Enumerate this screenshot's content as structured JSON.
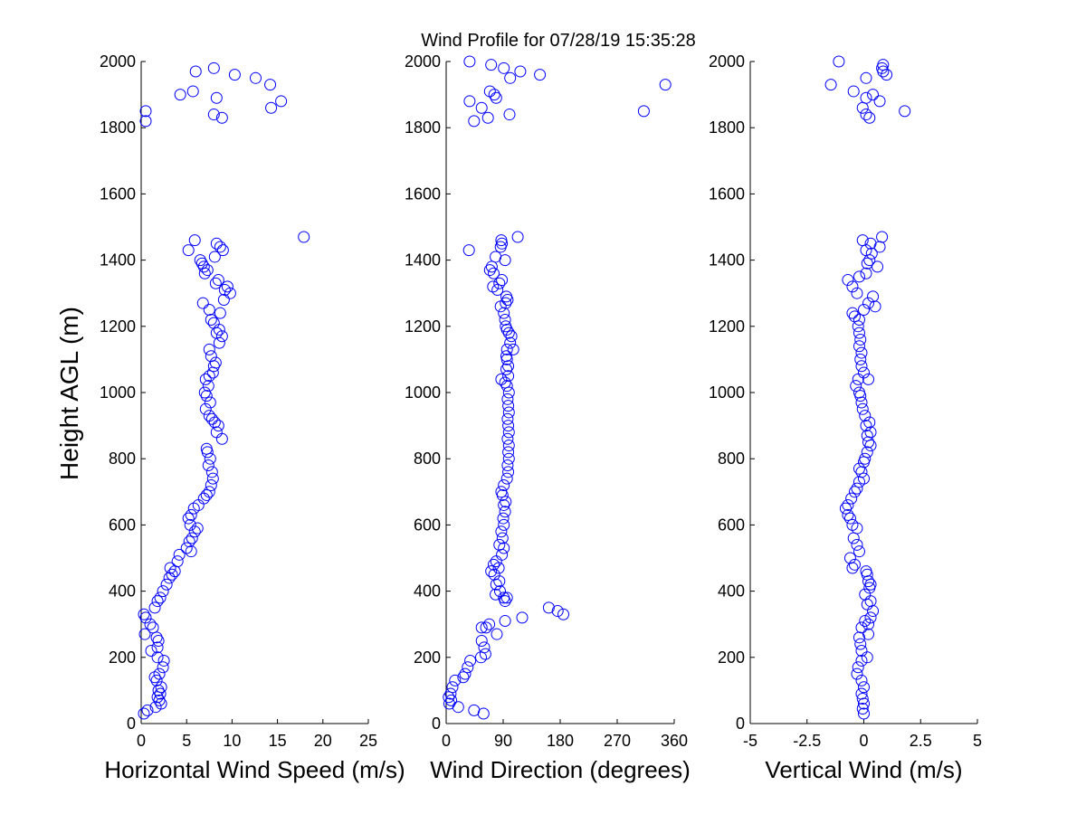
{
  "title": "Wind Profile for  07/28/19 15:35:28",
  "ylabel": "Height AGL (m)",
  "point_color": "#0000ff",
  "chart_data": [
    {
      "type": "scatter",
      "name": "speed-panel",
      "xlabel": "Horizontal Wind Speed (m/s)",
      "xlim": [
        0,
        25
      ],
      "ylim": [
        0,
        2000
      ],
      "xticks": [
        0,
        5,
        10,
        15,
        20,
        25
      ],
      "xtick_labels": [
        "0",
        "5",
        "10",
        "15",
        "20",
        "25"
      ],
      "yticks": [
        0,
        200,
        400,
        600,
        800,
        1000,
        1200,
        1400,
        1600,
        1800,
        2000
      ],
      "ytick_labels": [
        "0",
        "200",
        "400",
        "600",
        "800",
        "1000",
        "1200",
        "1400",
        "1600",
        "1800",
        "2000"
      ],
      "points": [
        [
          0.3,
          30
        ],
        [
          0.7,
          40
        ],
        [
          1.6,
          50
        ],
        [
          2.2,
          60
        ],
        [
          2.0,
          70
        ],
        [
          1.8,
          80
        ],
        [
          2.1,
          90
        ],
        [
          1.9,
          100
        ],
        [
          2.2,
          110
        ],
        [
          1.7,
          130
        ],
        [
          1.5,
          140
        ],
        [
          2.0,
          150
        ],
        [
          2.4,
          170
        ],
        [
          2.5,
          190
        ],
        [
          1.8,
          200
        ],
        [
          1.1,
          220
        ],
        [
          1.8,
          230
        ],
        [
          1.9,
          250
        ],
        [
          1.7,
          260
        ],
        [
          0.4,
          270
        ],
        [
          1.3,
          290
        ],
        [
          1.0,
          300
        ],
        [
          0.5,
          320
        ],
        [
          0.3,
          330
        ],
        [
          1.5,
          350
        ],
        [
          1.8,
          370
        ],
        [
          2.1,
          380
        ],
        [
          2.4,
          400
        ],
        [
          2.8,
          420
        ],
        [
          3.1,
          440
        ],
        [
          3.4,
          450
        ],
        [
          3.7,
          460
        ],
        [
          3.2,
          470
        ],
        [
          4.0,
          490
        ],
        [
          4.2,
          510
        ],
        [
          5.5,
          520
        ],
        [
          5.0,
          530
        ],
        [
          5.3,
          550
        ],
        [
          5.6,
          560
        ],
        [
          5.9,
          580
        ],
        [
          6.2,
          590
        ],
        [
          5.4,
          600
        ],
        [
          5.2,
          620
        ],
        [
          5.5,
          630
        ],
        [
          5.8,
          650
        ],
        [
          6.3,
          660
        ],
        [
          6.9,
          680
        ],
        [
          7.2,
          690
        ],
        [
          7.5,
          700
        ],
        [
          7.7,
          720
        ],
        [
          7.9,
          740
        ],
        [
          7.8,
          760
        ],
        [
          7.4,
          780
        ],
        [
          7.6,
          800
        ],
        [
          7.3,
          820
        ],
        [
          7.2,
          830
        ],
        [
          8.9,
          860
        ],
        [
          8.3,
          880
        ],
        [
          8.5,
          900
        ],
        [
          8.1,
          910
        ],
        [
          7.8,
          920
        ],
        [
          7.5,
          930
        ],
        [
          7.1,
          950
        ],
        [
          7.6,
          970
        ],
        [
          7.2,
          990
        ],
        [
          7.0,
          1000
        ],
        [
          7.4,
          1020
        ],
        [
          7.1,
          1040
        ],
        [
          7.5,
          1050
        ],
        [
          7.9,
          1060
        ],
        [
          8.0,
          1080
        ],
        [
          8.2,
          1090
        ],
        [
          7.7,
          1110
        ],
        [
          7.5,
          1130
        ],
        [
          8.6,
          1150
        ],
        [
          8.9,
          1170
        ],
        [
          8.3,
          1180
        ],
        [
          8.6,
          1190
        ],
        [
          8.0,
          1210
        ],
        [
          7.7,
          1220
        ],
        [
          8.7,
          1240
        ],
        [
          7.5,
          1250
        ],
        [
          6.8,
          1270
        ],
        [
          9.1,
          1280
        ],
        [
          9.8,
          1300
        ],
        [
          9.2,
          1310
        ],
        [
          9.5,
          1320
        ],
        [
          8.2,
          1330
        ],
        [
          8.5,
          1340
        ],
        [
          7.0,
          1360
        ],
        [
          7.3,
          1370
        ],
        [
          6.9,
          1380
        ],
        [
          6.7,
          1390
        ],
        [
          6.5,
          1400
        ],
        [
          8.1,
          1410
        ],
        [
          9.0,
          1430
        ],
        [
          5.2,
          1430
        ],
        [
          8.7,
          1440
        ],
        [
          8.3,
          1450
        ],
        [
          5.9,
          1460
        ],
        [
          17.9,
          1470
        ],
        [
          0.5,
          1820
        ],
        [
          8.9,
          1830
        ],
        [
          8.0,
          1840
        ],
        [
          0.5,
          1850
        ],
        [
          14.3,
          1860
        ],
        [
          15.4,
          1880
        ],
        [
          8.3,
          1890
        ],
        [
          4.3,
          1900
        ],
        [
          5.7,
          1910
        ],
        [
          14.2,
          1930
        ],
        [
          12.6,
          1950
        ],
        [
          10.3,
          1960
        ],
        [
          6.0,
          1970
        ],
        [
          8.0,
          1980
        ]
      ]
    },
    {
      "type": "scatter",
      "name": "direction-panel",
      "xlabel": "Wind Direction (degrees)",
      "xlim": [
        0,
        360
      ],
      "ylim": [
        0,
        2000
      ],
      "xticks": [
        0,
        90,
        180,
        270,
        360
      ],
      "xtick_labels": [
        "0",
        "90",
        "180",
        "270",
        "360"
      ],
      "yticks": [
        0,
        200,
        400,
        600,
        800,
        1000,
        1200,
        1400,
        1600,
        1800,
        2000
      ],
      "ytick_labels": [
        "0",
        "200",
        "400",
        "600",
        "800",
        "1000",
        "1200",
        "1400",
        "1600",
        "1800",
        "2000"
      ],
      "points": [
        [
          59,
          30
        ],
        [
          44,
          40
        ],
        [
          19,
          50
        ],
        [
          5,
          60
        ],
        [
          8,
          70
        ],
        [
          4,
          80
        ],
        [
          7,
          90
        ],
        [
          10,
          110
        ],
        [
          14,
          130
        ],
        [
          27,
          140
        ],
        [
          30,
          150
        ],
        [
          34,
          170
        ],
        [
          38,
          190
        ],
        [
          55,
          200
        ],
        [
          62,
          210
        ],
        [
          60,
          230
        ],
        [
          56,
          250
        ],
        [
          80,
          270
        ],
        [
          63,
          290
        ],
        [
          56,
          290
        ],
        [
          68,
          300
        ],
        [
          93,
          310
        ],
        [
          120,
          320
        ],
        [
          185,
          330
        ],
        [
          176,
          340
        ],
        [
          162,
          350
        ],
        [
          93,
          370
        ],
        [
          91,
          380
        ],
        [
          96,
          380
        ],
        [
          78,
          390
        ],
        [
          85,
          400
        ],
        [
          79,
          420
        ],
        [
          84,
          430
        ],
        [
          76,
          450
        ],
        [
          71,
          460
        ],
        [
          83,
          470
        ],
        [
          75,
          480
        ],
        [
          79,
          490
        ],
        [
          88,
          510
        ],
        [
          91,
          530
        ],
        [
          84,
          540
        ],
        [
          89,
          560
        ],
        [
          87,
          580
        ],
        [
          91,
          600
        ],
        [
          90,
          620
        ],
        [
          93,
          640
        ],
        [
          91,
          660
        ],
        [
          94,
          670
        ],
        [
          89,
          690
        ],
        [
          87,
          700
        ],
        [
          91,
          720
        ],
        [
          96,
          740
        ],
        [
          98,
          760
        ],
        [
          97,
          780
        ],
        [
          99,
          800
        ],
        [
          98,
          820
        ],
        [
          99,
          840
        ],
        [
          97,
          860
        ],
        [
          99,
          880
        ],
        [
          98,
          900
        ],
        [
          97,
          920
        ],
        [
          99,
          940
        ],
        [
          98,
          960
        ],
        [
          97,
          980
        ],
        [
          99,
          1000
        ],
        [
          96,
          1020
        ],
        [
          93,
          1030
        ],
        [
          87,
          1040
        ],
        [
          98,
          1050
        ],
        [
          95,
          1070
        ],
        [
          98,
          1080
        ],
        [
          96,
          1100
        ],
        [
          95,
          1110
        ],
        [
          96,
          1130
        ],
        [
          106,
          1130
        ],
        [
          101,
          1150
        ],
        [
          103,
          1170
        ],
        [
          99,
          1180
        ],
        [
          96,
          1190
        ],
        [
          94,
          1200
        ],
        [
          93,
          1220
        ],
        [
          91,
          1240
        ],
        [
          86,
          1260
        ],
        [
          94,
          1270
        ],
        [
          97,
          1280
        ],
        [
          95,
          1290
        ],
        [
          81,
          1310
        ],
        [
          74,
          1320
        ],
        [
          84,
          1330
        ],
        [
          88,
          1340
        ],
        [
          75,
          1360
        ],
        [
          69,
          1370
        ],
        [
          72,
          1380
        ],
        [
          93,
          1400
        ],
        [
          78,
          1410
        ],
        [
          36,
          1430
        ],
        [
          86,
          1440
        ],
        [
          88,
          1450
        ],
        [
          87,
          1460
        ],
        [
          113,
          1470
        ],
        [
          44,
          1820
        ],
        [
          66,
          1830
        ],
        [
          100,
          1840
        ],
        [
          312,
          1850
        ],
        [
          56,
          1860
        ],
        [
          37,
          1880
        ],
        [
          79,
          1890
        ],
        [
          76,
          1900
        ],
        [
          69,
          1910
        ],
        [
          346,
          1930
        ],
        [
          148,
          1960
        ],
        [
          101,
          1950
        ],
        [
          117,
          1970
        ],
        [
          91,
          1980
        ],
        [
          71,
          1990
        ],
        [
          37,
          2000
        ]
      ]
    },
    {
      "type": "scatter",
      "name": "vertical-panel",
      "xlabel": "Vertical Wind (m/s)",
      "xlim": [
        -5,
        5
      ],
      "ylim": [
        0,
        2000
      ],
      "xticks": [
        -5,
        -2.5,
        0,
        2.5,
        5
      ],
      "xtick_labels": [
        "-5",
        "-2.5",
        "0",
        "2.5",
        "5"
      ],
      "yticks": [
        0,
        200,
        400,
        600,
        800,
        1000,
        1200,
        1400,
        1600,
        1800,
        2000
      ],
      "ytick_labels": [
        "0",
        "200",
        "400",
        "600",
        "800",
        "1000",
        "1200",
        "1400",
        "1600",
        "1800",
        "2000"
      ],
      "points": [
        [
          0.0,
          30
        ],
        [
          -0.05,
          45
        ],
        [
          0.0,
          60
        ],
        [
          -0.05,
          75
        ],
        [
          -0.1,
          90
        ],
        [
          0.0,
          110
        ],
        [
          -0.1,
          130
        ],
        [
          -0.3,
          150
        ],
        [
          -0.25,
          170
        ],
        [
          -0.1,
          190
        ],
        [
          0.15,
          200
        ],
        [
          -0.1,
          220
        ],
        [
          -0.15,
          240
        ],
        [
          -0.2,
          260
        ],
        [
          0.2,
          270
        ],
        [
          -0.1,
          290
        ],
        [
          0.2,
          300
        ],
        [
          0.05,
          310
        ],
        [
          0.3,
          320
        ],
        [
          0.4,
          340
        ],
        [
          0.15,
          360
        ],
        [
          0.3,
          370
        ],
        [
          0.05,
          390
        ],
        [
          0.25,
          410
        ],
        [
          0.3,
          420
        ],
        [
          0.2,
          430
        ],
        [
          0.15,
          450
        ],
        [
          0.1,
          460
        ],
        [
          -0.5,
          470
        ],
        [
          -0.4,
          480
        ],
        [
          -0.6,
          500
        ],
        [
          -0.2,
          520
        ],
        [
          -0.3,
          540
        ],
        [
          -0.45,
          560
        ],
        [
          -0.3,
          590
        ],
        [
          -0.5,
          600
        ],
        [
          -0.6,
          620
        ],
        [
          -0.7,
          630
        ],
        [
          -0.8,
          650
        ],
        [
          -0.7,
          660
        ],
        [
          -0.55,
          680
        ],
        [
          -0.4,
          700
        ],
        [
          -0.3,
          710
        ],
        [
          -0.2,
          730
        ],
        [
          0.0,
          740
        ],
        [
          -0.1,
          760
        ],
        [
          -0.2,
          770
        ],
        [
          0.0,
          790
        ],
        [
          0.05,
          800
        ],
        [
          0.15,
          820
        ],
        [
          0.3,
          840
        ],
        [
          0.2,
          850
        ],
        [
          0.15,
          870
        ],
        [
          0.3,
          880
        ],
        [
          0.1,
          900
        ],
        [
          0.25,
          910
        ],
        [
          0.05,
          930
        ],
        [
          -0.05,
          950
        ],
        [
          -0.1,
          970
        ],
        [
          -0.15,
          990
        ],
        [
          -0.2,
          1000
        ],
        [
          -0.35,
          1020
        ],
        [
          -0.25,
          1040
        ],
        [
          0.2,
          1040
        ],
        [
          0.0,
          1060
        ],
        [
          -0.1,
          1080
        ],
        [
          -0.15,
          1100
        ],
        [
          -0.1,
          1120
        ],
        [
          -0.2,
          1140
        ],
        [
          -0.15,
          1160
        ],
        [
          -0.2,
          1180
        ],
        [
          -0.25,
          1200
        ],
        [
          -0.2,
          1220
        ],
        [
          -0.4,
          1230
        ],
        [
          -0.5,
          1240
        ],
        [
          0.0,
          1250
        ],
        [
          0.5,
          1260
        ],
        [
          0.2,
          1270
        ],
        [
          0.4,
          1290
        ],
        [
          -0.3,
          1300
        ],
        [
          -0.5,
          1320
        ],
        [
          -0.7,
          1340
        ],
        [
          -0.2,
          1350
        ],
        [
          0.1,
          1360
        ],
        [
          0.6,
          1380
        ],
        [
          0.15,
          1390
        ],
        [
          0.25,
          1400
        ],
        [
          0.35,
          1420
        ],
        [
          0.1,
          1430
        ],
        [
          0.7,
          1440
        ],
        [
          0.3,
          1450
        ],
        [
          -0.05,
          1460
        ],
        [
          0.8,
          1470
        ],
        [
          0.25,
          1830
        ],
        [
          0.1,
          1840
        ],
        [
          1.8,
          1850
        ],
        [
          -0.05,
          1860
        ],
        [
          0.7,
          1880
        ],
        [
          0.1,
          1890
        ],
        [
          0.4,
          1900
        ],
        [
          -0.45,
          1910
        ],
        [
          -1.45,
          1930
        ],
        [
          0.1,
          1950
        ],
        [
          1.0,
          1960
        ],
        [
          0.85,
          1970
        ],
        [
          0.8,
          1980
        ],
        [
          0.85,
          1990
        ],
        [
          -1.1,
          2000
        ]
      ]
    }
  ]
}
